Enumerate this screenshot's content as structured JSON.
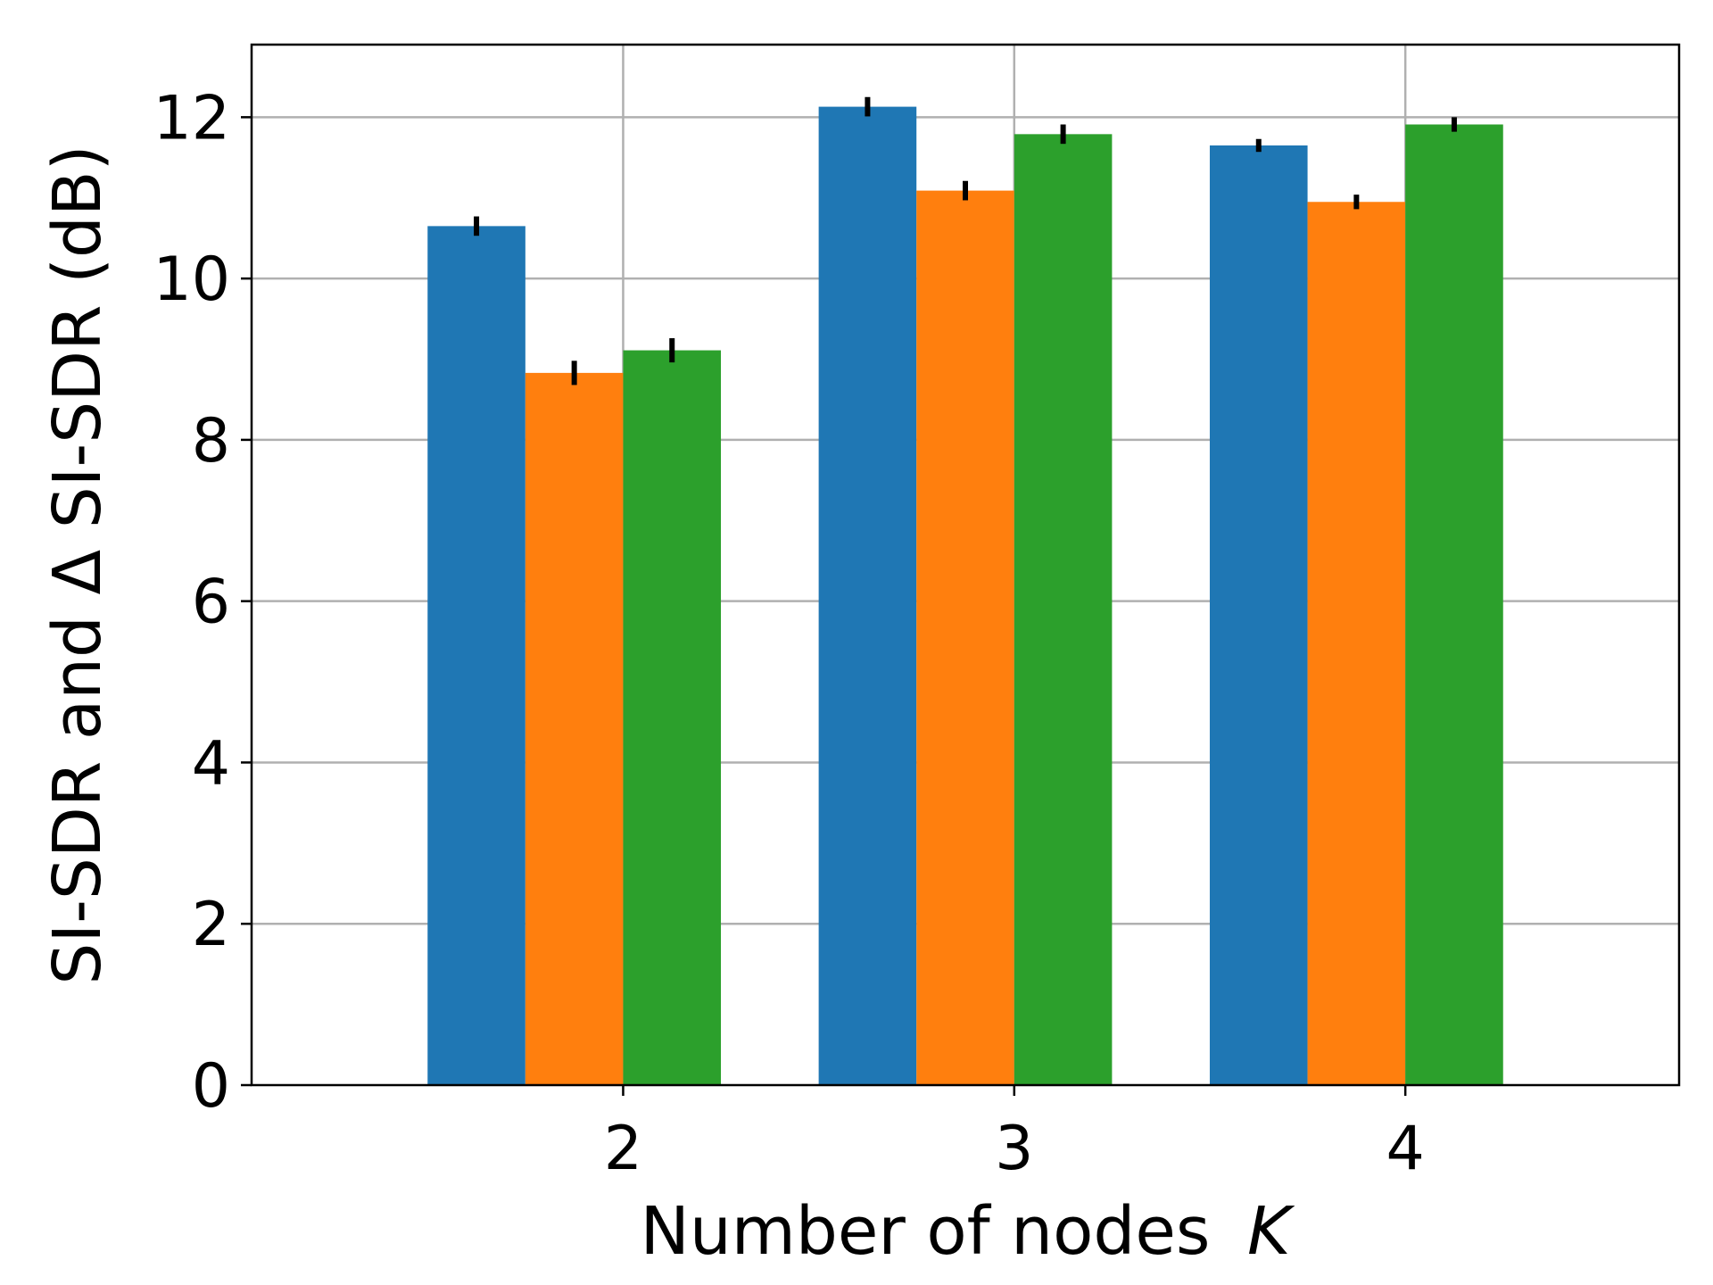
{
  "chart_data": {
    "type": "bar",
    "title": "",
    "xlabel": "Number of nodes",
    "xlabel_symbol": "K",
    "ylabel": "SI-SDR and Δ SI-SDR (dB)",
    "categories": [
      "2",
      "3",
      "4"
    ],
    "yticks": [
      "0",
      "2",
      "4",
      "6",
      "8",
      "10",
      "12"
    ],
    "ylim": [
      0,
      12.9
    ],
    "xlim": [
      1.05,
      4.7
    ],
    "grid": true,
    "legend": "none",
    "series": [
      {
        "color": "#1f77b4",
        "values": [
          10.65,
          12.13,
          11.65
        ],
        "errors": [
          0.12,
          0.12,
          0.08
        ]
      },
      {
        "color": "#ff7f0e",
        "values": [
          8.83,
          11.09,
          10.95
        ],
        "errors": [
          0.15,
          0.12,
          0.09
        ]
      },
      {
        "color": "#2ca02c",
        "values": [
          9.11,
          11.79,
          11.91
        ],
        "errors": [
          0.15,
          0.12,
          0.09
        ]
      }
    ]
  }
}
